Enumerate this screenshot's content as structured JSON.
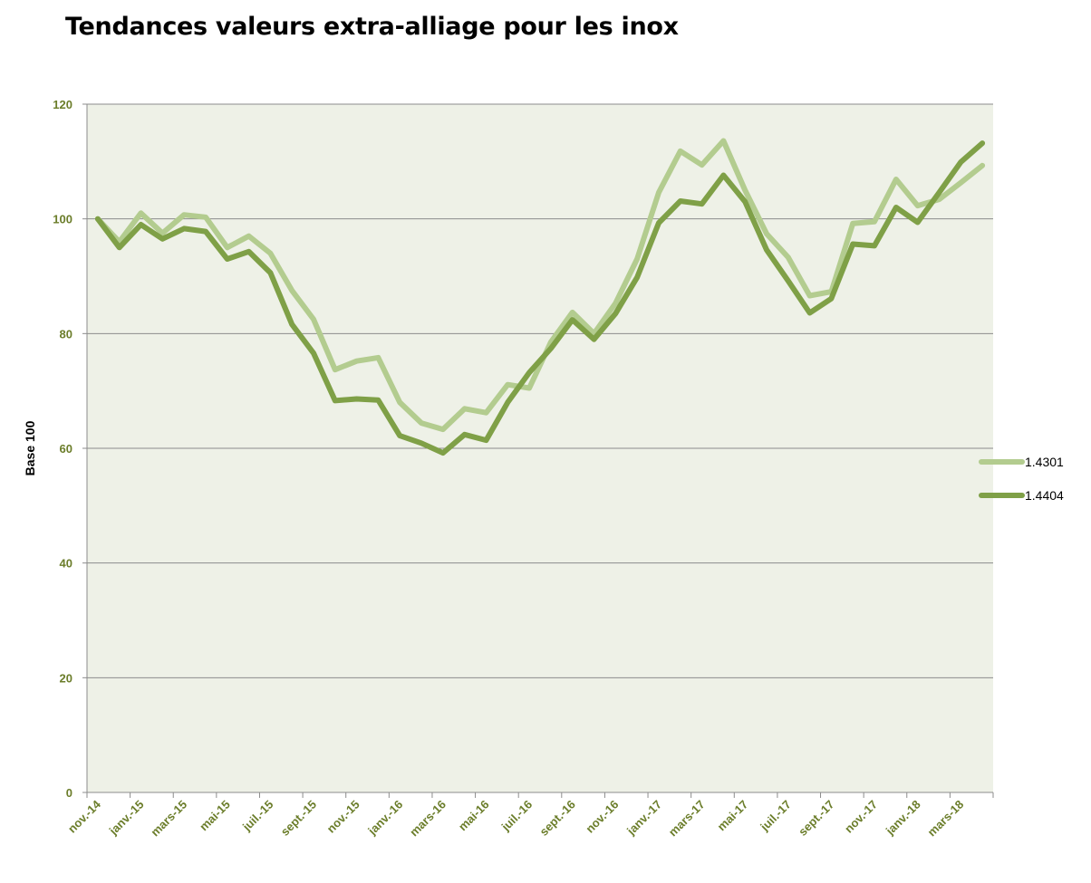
{
  "chart_data": {
    "type": "line",
    "title": "Tendances valeurs extra-alliage pour les inox",
    "xlabel": "",
    "ylabel": "Base 100",
    "ylim": [
      0,
      120
    ],
    "yticks": [
      0,
      20,
      40,
      60,
      80,
      100,
      120
    ],
    "grid": true,
    "legend_position": "right",
    "x": [
      "nov.-14",
      "déc.-14",
      "janv.-15",
      "févr.-15",
      "mars-15",
      "avr.-15",
      "mai-15",
      "juin-15",
      "juil.-15",
      "août-15",
      "sept.-15",
      "oct.-15",
      "nov.-15",
      "déc.-15",
      "janv.-16",
      "févr.-16",
      "mars-16",
      "avr.-16",
      "mai-16",
      "juin-16",
      "juil.-16",
      "août-16",
      "sept.-16",
      "oct.-16",
      "nov.-16",
      "déc.-16",
      "janv.-17",
      "févr.-17",
      "mars-17",
      "avr.-17",
      "mai-17",
      "juin-17",
      "juil.-17",
      "août-17",
      "sept.-17",
      "oct.-17",
      "nov.-17",
      "déc.-17",
      "janv.-18",
      "févr.-18",
      "mars-18",
      "avr.-18"
    ],
    "x_tick_labels": [
      "nov.-14",
      "janv.-15",
      "mars-15",
      "mai-15",
      "juil.-15",
      "sept.-15",
      "nov.-15",
      "janv.-16",
      "mars-16",
      "mai-16",
      "juil.-16",
      "sept.-16",
      "nov.-16",
      "janv.-17",
      "mars-17",
      "mai-17",
      "juil.-17",
      "sept.-17",
      "nov.-17",
      "janv.-18",
      "mars-18"
    ],
    "series": [
      {
        "name": "1.4301",
        "color": "#b3cc8f",
        "values": [
          100,
          96,
          101,
          97.5,
          100.7,
          100.3,
          95,
          97,
          94,
          87.5,
          82.5,
          73.7,
          75.2,
          75.8,
          68,
          64.4,
          63.3,
          66.9,
          66.2,
          71.1,
          70.5,
          78.5,
          83.7,
          80,
          85.3,
          93,
          104.6,
          111.8,
          109.4,
          113.6,
          105,
          97.4,
          93.3,
          86.6,
          87.3,
          99.2,
          99.5,
          106.9,
          102.3,
          103.4,
          106.3,
          109.3
        ]
      },
      {
        "name": "1.4404",
        "color": "#7fa047",
        "values": [
          100,
          95,
          99,
          96.5,
          98.3,
          97.8,
          93,
          94.3,
          90.6,
          81.6,
          76.6,
          68.3,
          68.6,
          68.4,
          62.2,
          60.9,
          59.2,
          62.4,
          61.4,
          68,
          73.2,
          77.4,
          82.4,
          79,
          83.5,
          89.8,
          99.3,
          103.1,
          102.6,
          107.6,
          103,
          94.6,
          89.2,
          83.6,
          86.1,
          95.6,
          95.3,
          102,
          99.4,
          104.6,
          109.9,
          113.2
        ]
      }
    ]
  }
}
